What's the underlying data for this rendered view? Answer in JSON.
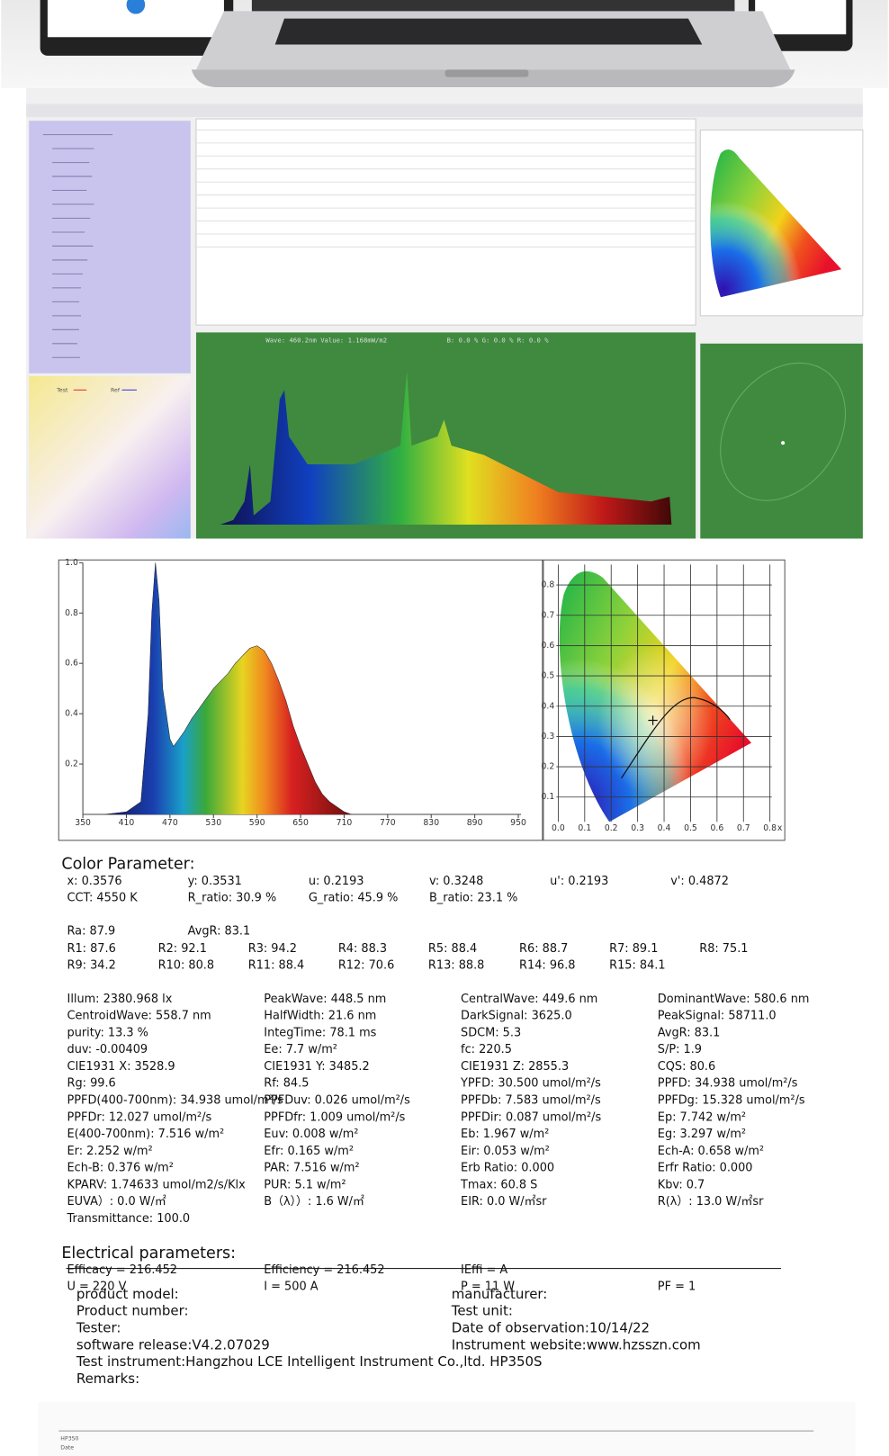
{
  "software": {
    "wave_readout": "Wave: 460.2nm Value: 1.168mW/m2",
    "rgb_readout": "B: 0.0 %  G: 0.0 %  R: 0.0 %",
    "legend_test": "Test",
    "legend_ref": "Ref"
  },
  "spectrum": {
    "xlim": [
      350,
      950
    ],
    "ylim": [
      0,
      1
    ],
    "xticks": [
      350,
      410,
      470,
      530,
      590,
      650,
      710,
      770,
      830,
      890,
      950
    ],
    "yticks": [
      0.2,
      0.4,
      0.6,
      0.8,
      {
        "value": 1,
        "label": "1.0"
      }
    ],
    "x": [
      380,
      410,
      430,
      440,
      445,
      450,
      455,
      460,
      470,
      475,
      480,
      490,
      500,
      510,
      520,
      530,
      540,
      550,
      560,
      570,
      580,
      590,
      600,
      610,
      620,
      630,
      640,
      650,
      660,
      670,
      680,
      690,
      700,
      710,
      720
    ],
    "values": [
      0,
      0.01,
      0.05,
      0.4,
      0.8,
      1.0,
      0.85,
      0.5,
      0.3,
      0.27,
      0.29,
      0.33,
      0.38,
      0.42,
      0.46,
      0.5,
      0.53,
      0.56,
      0.6,
      0.63,
      0.66,
      0.67,
      0.65,
      0.6,
      0.53,
      0.45,
      0.35,
      0.27,
      0.2,
      0.13,
      0.08,
      0.05,
      0.03,
      0.01,
      0
    ]
  },
  "cie": {
    "xlim": [
      0,
      0.8
    ],
    "ylim": [
      0,
      0.8
    ],
    "xticks": [
      {
        "value": 0,
        "label": "0.0"
      },
      0.1,
      0.2,
      0.3,
      0.4,
      0.5,
      0.6,
      0.7,
      0.8
    ],
    "yticks": [
      0.1,
      0.2,
      0.3,
      0.4,
      0.5,
      0.6,
      0.7,
      0.8
    ],
    "x_label": "x",
    "point": {
      "x": 0.3576,
      "y": 0.3531
    }
  },
  "color": {
    "title": "Color Parameter:",
    "rows": [
      [
        "x: 0.3576",
        "y: 0.3531",
        "u: 0.2193",
        "v: 0.3248",
        "u': 0.2193",
        "v': 0.4872"
      ],
      [
        "CCT: 4550 K",
        "R_ratio: 30.9 %",
        "G_ratio: 45.9 %",
        "B_ratio: 23.1 %"
      ],
      [
        "Ra: 87.9",
        "AvgR: 83.1"
      ],
      [
        "R1: 87.6",
        "R2: 92.1",
        "R3: 94.2",
        "R4: 88.3",
        "R5: 88.4",
        "R6: 88.7",
        "R7: 89.1",
        "R8: 75.1"
      ],
      [
        "R9: 34.2",
        "R10: 80.8",
        "R11: 88.4",
        "R12: 70.6",
        "R13: 88.8",
        "R14: 96.8",
        "R15: 84.1"
      ]
    ],
    "grid": [
      [
        "Illum: 2380.968 lx",
        "PeakWave: 448.5 nm",
        "CentralWave: 449.6 nm",
        "DominantWave: 580.6 nm"
      ],
      [
        "CentroidWave: 558.7 nm",
        "HalfWidth: 21.6 nm",
        "DarkSignal: 3625.0",
        "PeakSignal: 58711.0"
      ],
      [
        "purity: 13.3 %",
        "IntegTime: 78.1 ms",
        "SDCM: 5.3",
        "AvgR: 83.1"
      ],
      [
        "duv: -0.00409",
        "Ee: 7.7 w/m²",
        "fc: 220.5",
        "S/P: 1.9"
      ],
      [
        "CIE1931 X: 3528.9",
        "CIE1931 Y: 3485.2",
        "CIE1931 Z: 2855.3",
        "CQS: 80.6"
      ],
      [
        "Rg: 99.6",
        "Rf: 84.5",
        "YPFD: 30.500 umol/m²/s",
        "PPFD: 34.938 umol/m²/s"
      ],
      [
        "PPFD(400-700nm): 34.938 umol/m²/s",
        "PPFDuv: 0.026 umol/m²/s",
        "PPFDb: 7.583 umol/m²/s",
        "PPFDg: 15.328 umol/m²/s"
      ],
      [
        "PPFDr: 12.027 umol/m²/s",
        "PPFDfr: 1.009 umol/m²/s",
        "PPFDir: 0.087 umol/m²/s",
        "Ep: 7.742 w/m²"
      ],
      [
        "E(400-700nm): 7.516 w/m²",
        "Euv: 0.008 w/m²",
        "Eb: 1.967 w/m²",
        "Eg: 3.297 w/m²"
      ],
      [
        "Er: 2.252 w/m²",
        "Efr: 0.165 w/m²",
        "Eir: 0.053 w/m²",
        "Ech-A: 0.658 w/m²"
      ],
      [
        "Ech-B: 0.376 w/m²",
        "PAR: 7.516 w/m²",
        "Erb Ratio: 0.000",
        "Erfr Ratio: 0.000"
      ],
      [
        "KPARV: 1.74633 umol/m2/s/Klx",
        "PUR: 5.1 w/m²",
        "Tmax: 60.8 S",
        "Kbv: 0.7"
      ],
      [
        "EUVA）: 0.0 W/㎡",
        "B（λ））: 1.6 W/㎡",
        "EIR: 0.0 W/㎡sr",
        "R(λ）: 13.0 W/㎡sr"
      ],
      [
        "Transmittance: 100.0"
      ]
    ]
  },
  "electrical": {
    "title": "Electrical parameters:",
    "rows": [
      [
        "Efficacy = 216.452",
        "Efficiency = 216.452",
        "IEffi = A"
      ],
      [
        "U = 220 V",
        "I = 500 A",
        "P = 11 W",
        "PF = 1"
      ]
    ]
  },
  "report": {
    "left": [
      "product model:",
      "Product number:",
      "Tester:",
      "software release:V4.2.07029",
      "Test instrument:Hangzhou LCE Intelligent Instrument Co.,ltd. HP350S",
      "Remarks:"
    ],
    "right": [
      "manufacturer:",
      "Test unit:",
      "Date of observation:10/14/22",
      "Instrument website:www.hzsszn.com"
    ]
  },
  "strip": [
    "HP350",
    "Date"
  ]
}
